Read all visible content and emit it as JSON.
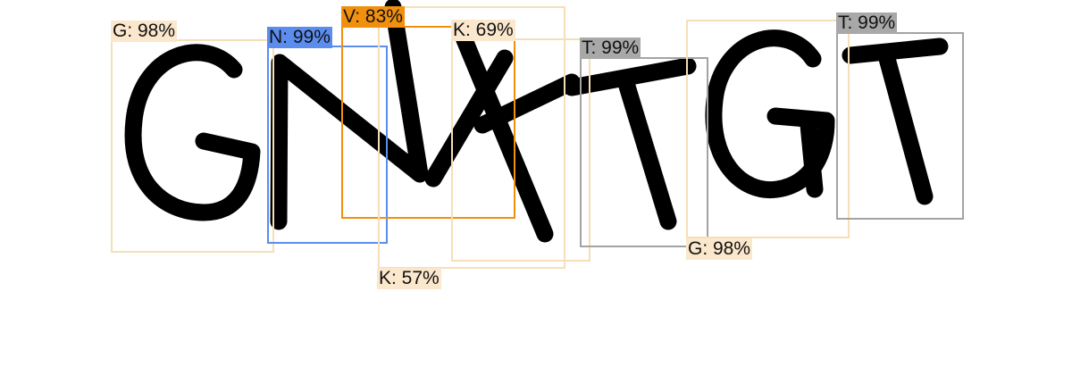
{
  "image": {
    "captcha_text": "GNKTGT",
    "glyphs": [
      "G",
      "N",
      "K",
      "T",
      "G",
      "T"
    ]
  },
  "colors": {
    "tan": "#f5dfb8",
    "tan_label": "#fbe7cc",
    "blue": "#5b8def",
    "orange": "#f0900e",
    "gray": "#a3a3a3",
    "gray_label": "#a8a8a8"
  },
  "detections": [
    {
      "label": "G",
      "confidence": "98%",
      "text": "G: 98%",
      "color": "tan"
    },
    {
      "label": "N",
      "confidence": "99%",
      "text": "N: 99%",
      "color": "blue"
    },
    {
      "label": "V",
      "confidence": "83%",
      "text": "V: 83%",
      "color": "orange"
    },
    {
      "label": "K",
      "confidence": "69%",
      "text": "K: 69%",
      "color": "tan"
    },
    {
      "label": "K",
      "confidence": "57%",
      "text": "K: 57%",
      "color": "tan"
    },
    {
      "label": "T",
      "confidence": "99%",
      "text": "T: 99%",
      "color": "gray"
    },
    {
      "label": "G",
      "confidence": "98%",
      "text": "G: 98%",
      "color": "tan"
    },
    {
      "label": "T",
      "confidence": "99%",
      "text": "T: 99%",
      "color": "gray"
    }
  ]
}
